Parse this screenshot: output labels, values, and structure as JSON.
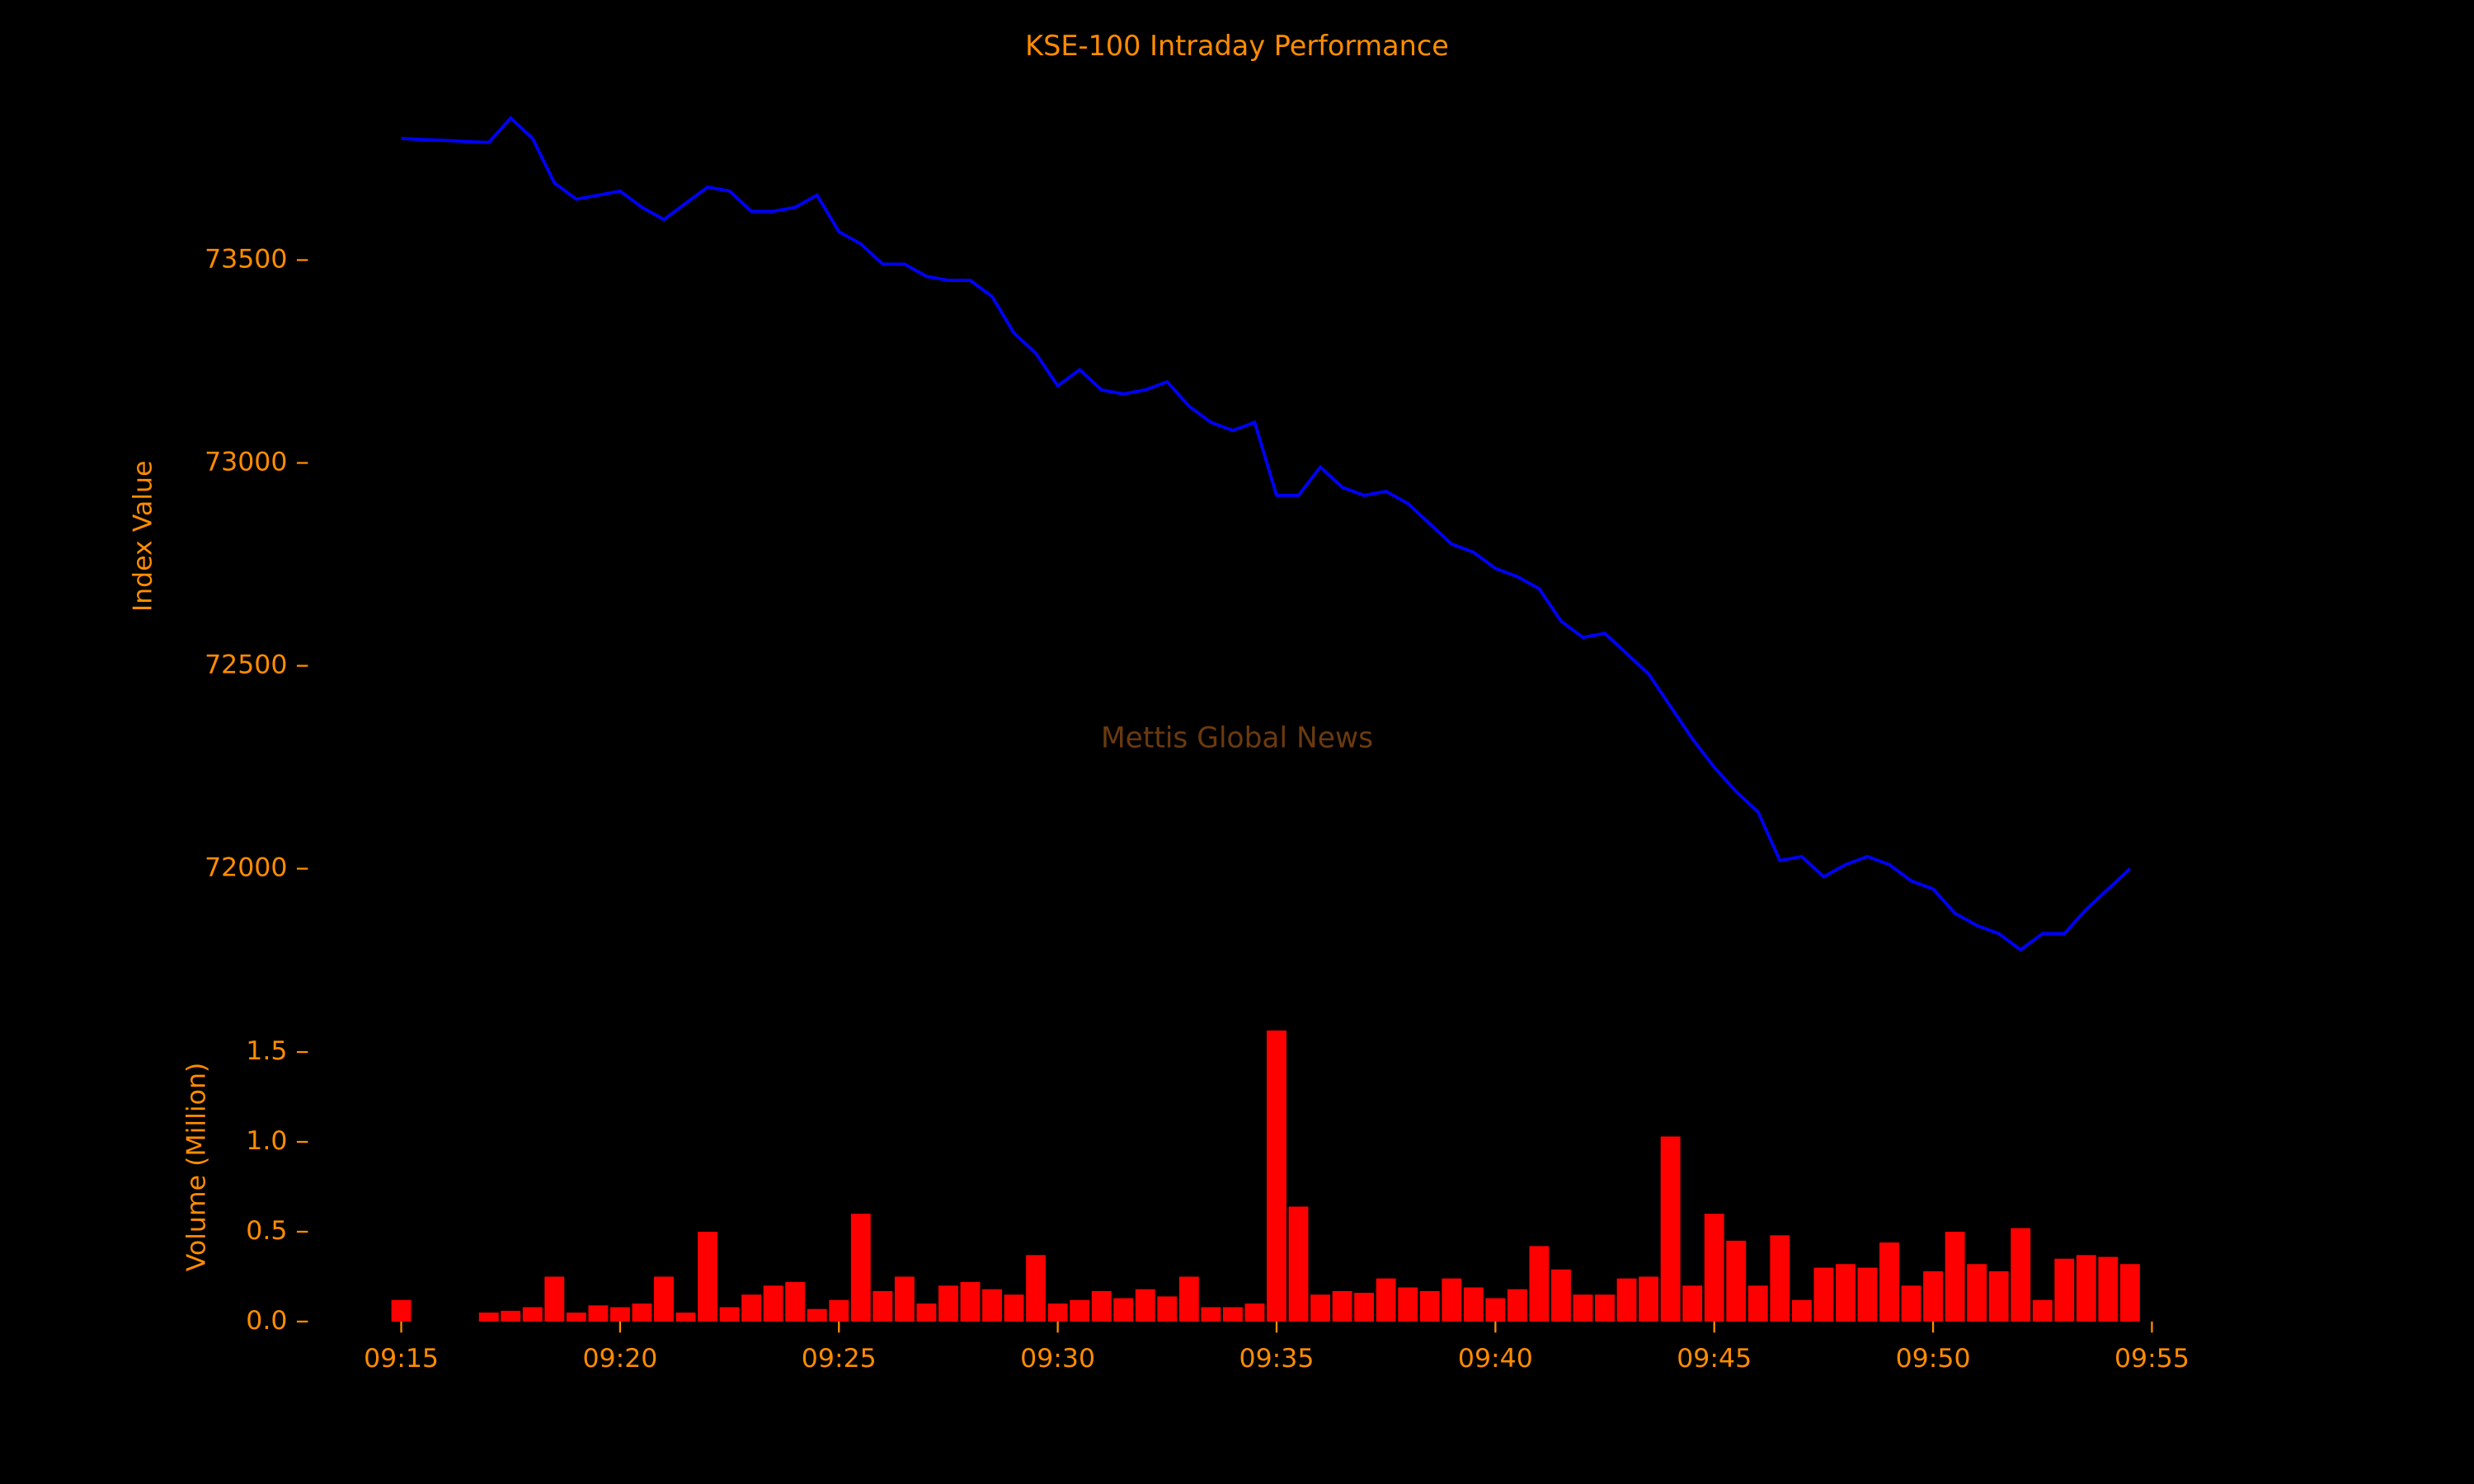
{
  "chart_data": [
    {
      "type": "line",
      "title": "KSE-100 Intraday Performance",
      "ylabel": "Index Value",
      "watermark": "Mettis Global News",
      "color": "#0000ff",
      "x": [
        "09:15:00",
        "09:15:30",
        "09:16:00",
        "09:16:30",
        "09:17:00",
        "09:17:30",
        "09:18:00",
        "09:18:30",
        "09:19:00",
        "09:19:30",
        "09:20:00",
        "09:20:30",
        "09:21:00",
        "09:21:30",
        "09:22:00",
        "09:22:30",
        "09:23:00",
        "09:23:30",
        "09:24:00",
        "09:24:30",
        "09:25:00",
        "09:25:30",
        "09:26:00",
        "09:26:30",
        "09:27:00",
        "09:27:30",
        "09:28:00",
        "09:28:30",
        "09:29:00",
        "09:29:30",
        "09:30:00",
        "09:30:30",
        "09:31:00",
        "09:31:30",
        "09:32:00",
        "09:32:30",
        "09:33:00",
        "09:33:30",
        "09:34:00",
        "09:34:30",
        "09:35:00",
        "09:35:30",
        "09:36:00",
        "09:36:30",
        "09:37:00",
        "09:37:30",
        "09:38:00",
        "09:38:30",
        "09:39:00",
        "09:39:30",
        "09:40:00",
        "09:40:30",
        "09:41:00",
        "09:41:30",
        "09:42:00",
        "09:42:30",
        "09:43:00",
        "09:43:30",
        "09:44:00",
        "09:44:30",
        "09:45:00",
        "09:45:30",
        "09:46:00",
        "09:46:30",
        "09:47:00",
        "09:47:30",
        "09:48:00",
        "09:48:30",
        "09:49:00",
        "09:49:30",
        "09:50:00",
        "09:50:30",
        "09:51:00",
        "09:51:30",
        "09:52:00",
        "09:52:30",
        "09:53:00",
        "09:53:30",
        "09:54:00",
        "09:54:30"
      ],
      "values": [
        73800,
        73797,
        73795,
        73792,
        73790,
        73850,
        73800,
        73690,
        73650,
        73660,
        73670,
        73630,
        73600,
        73640,
        73680,
        73670,
        73620,
        73620,
        73630,
        73660,
        73570,
        73540,
        73490,
        73490,
        73460,
        73450,
        73450,
        73410,
        73320,
        73270,
        73190,
        73230,
        73180,
        73170,
        73180,
        73200,
        73140,
        73100,
        73080,
        73100,
        72920,
        72920,
        72990,
        72940,
        72920,
        72930,
        72900,
        72850,
        72800,
        72780,
        72740,
        72720,
        72690,
        72610,
        72570,
        72580,
        72530,
        72480,
        72400,
        72320,
        72250,
        72190,
        72140,
        72020,
        72030,
        71980,
        72010,
        72030,
        72010,
        71970,
        71950,
        71890,
        71860,
        71840,
        71800,
        71840,
        71840,
        71900,
        71950,
        72000
      ],
      "xlim": [
        "09:12:52",
        "09:55:13"
      ],
      "ylim": [
        71700,
        73900
      ],
      "yticks": [
        72000,
        72500,
        73000,
        73500
      ]
    },
    {
      "type": "bar",
      "ylabel": "Volume (Million)",
      "color": "#ff0000",
      "x": [
        "09:15:00",
        "09:15:30",
        "09:16:00",
        "09:16:30",
        "09:17:00",
        "09:17:30",
        "09:18:00",
        "09:18:30",
        "09:19:00",
        "09:19:30",
        "09:20:00",
        "09:20:30",
        "09:21:00",
        "09:21:30",
        "09:22:00",
        "09:22:30",
        "09:23:00",
        "09:23:30",
        "09:24:00",
        "09:24:30",
        "09:25:00",
        "09:25:30",
        "09:26:00",
        "09:26:30",
        "09:27:00",
        "09:27:30",
        "09:28:00",
        "09:28:30",
        "09:29:00",
        "09:29:30",
        "09:30:00",
        "09:30:30",
        "09:31:00",
        "09:31:30",
        "09:32:00",
        "09:32:30",
        "09:33:00",
        "09:33:30",
        "09:34:00",
        "09:34:30",
        "09:35:00",
        "09:35:30",
        "09:36:00",
        "09:36:30",
        "09:37:00",
        "09:37:30",
        "09:38:00",
        "09:38:30",
        "09:39:00",
        "09:39:30",
        "09:40:00",
        "09:40:30",
        "09:41:00",
        "09:41:30",
        "09:42:00",
        "09:42:30",
        "09:43:00",
        "09:43:30",
        "09:44:00",
        "09:44:30",
        "09:45:00",
        "09:45:30",
        "09:46:00",
        "09:46:30",
        "09:47:00",
        "09:47:30",
        "09:48:00",
        "09:48:30",
        "09:49:00",
        "09:49:30",
        "09:50:00",
        "09:50:30",
        "09:51:00",
        "09:51:30",
        "09:52:00",
        "09:52:30",
        "09:53:00",
        "09:53:30",
        "09:54:00",
        "09:54:30"
      ],
      "values": [
        0.12,
        null,
        null,
        null,
        0.05,
        0.06,
        0.08,
        0.25,
        0.05,
        0.09,
        0.08,
        0.1,
        0.25,
        0.05,
        0.5,
        0.08,
        0.15,
        0.2,
        0.22,
        0.07,
        0.12,
        0.6,
        0.17,
        0.25,
        0.1,
        0.2,
        0.22,
        0.18,
        0.15,
        0.37,
        0.1,
        0.12,
        0.17,
        0.13,
        0.18,
        0.14,
        0.25,
        0.08,
        0.08,
        0.1,
        1.62,
        0.64,
        0.15,
        0.17,
        0.16,
        0.24,
        0.19,
        0.17,
        0.24,
        0.19,
        0.13,
        0.18,
        0.42,
        0.29,
        0.15,
        0.15,
        0.24,
        0.25,
        1.03,
        0.2,
        0.6,
        0.45,
        0.2,
        0.48,
        0.12,
        0.3,
        0.32,
        0.3,
        0.44,
        0.2,
        0.28,
        0.5,
        0.32,
        0.28,
        0.52,
        0.12,
        0.35,
        0.37,
        0.36,
        0.32
      ],
      "xlim": [
        "09:12:52",
        "09:55:13"
      ],
      "ylim": [
        0,
        1.65
      ],
      "yticks": [
        {
          "value": 0,
          "label": "0.0"
        },
        {
          "value": 0.5,
          "label": "0.5"
        },
        {
          "value": 1,
          "label": "1.0"
        },
        {
          "value": 1.5,
          "label": "1.5"
        }
      ],
      "xticks": [
        "09:15",
        "09:20",
        "09:25",
        "09:30",
        "09:35",
        "09:40",
        "09:45",
        "09:50",
        "09:55"
      ]
    }
  ]
}
